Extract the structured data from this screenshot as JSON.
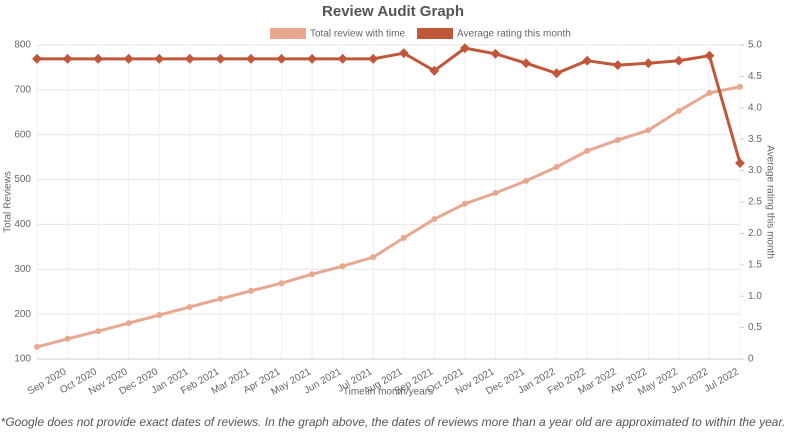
{
  "chart_data": {
    "type": "line",
    "title": "Review Audit Graph",
    "xlabel": "Time in month/years",
    "ylabel": "Total Reviews",
    "y2label": "Average rating this month",
    "note": "*Google does not provide exact dates of reviews. In the graph above, the dates of reviews more than a year old are approximated to within the year.",
    "categories": [
      null,
      "Sep 2020",
      "Oct 2020",
      "Nov 2020",
      "Dec 2020",
      "Jan 2021",
      "Feb 2021",
      "Mar 2021",
      "Apr 2021",
      "May 2021",
      "Jun 2021",
      "Jul 2021",
      "Aug 2021",
      "Sep 2021",
      "Oct 2021",
      "Nov 2021",
      "Dec 2021",
      "Jan 2022",
      "Feb 2022",
      "Mar 2022",
      "Apr 2022",
      "May 2022",
      "Jun 2022",
      "Jul 2022"
    ],
    "series": [
      {
        "name": "Total review with time",
        "color": "#e8a890",
        "axis": "y",
        "values": [
          127,
          145,
          162,
          180,
          198,
          216,
          234,
          252,
          269,
          289,
          307,
          327,
          370,
          412,
          446,
          470,
          497,
          528,
          564,
          588,
          610,
          653,
          693,
          707
        ]
      },
      {
        "name": "Average rating this month",
        "color": "#c0573a",
        "axis": "y2",
        "values": [
          4.78,
          4.78,
          4.78,
          4.78,
          4.78,
          4.78,
          4.78,
          4.78,
          4.78,
          4.78,
          4.78,
          4.78,
          4.87,
          4.59,
          4.95,
          4.86,
          4.71,
          4.55,
          4.75,
          4.68,
          4.71,
          4.75,
          4.83,
          3.12
        ]
      }
    ],
    "ylim": [
      100,
      800
    ],
    "yticks": [
      100,
      200,
      300,
      400,
      500,
      600,
      700,
      800
    ],
    "y2lim": [
      0,
      5
    ],
    "y2ticks": [
      0,
      0.5,
      {
        "value": 1,
        "label": "1.0"
      },
      1.5,
      {
        "value": 2,
        "label": "2.0"
      },
      2.5,
      {
        "value": 3,
        "label": "3.0"
      },
      3.5,
      {
        "value": 4,
        "label": "4.0"
      },
      4.5,
      {
        "value": 5,
        "label": "5.0"
      }
    ],
    "grid": true
  }
}
